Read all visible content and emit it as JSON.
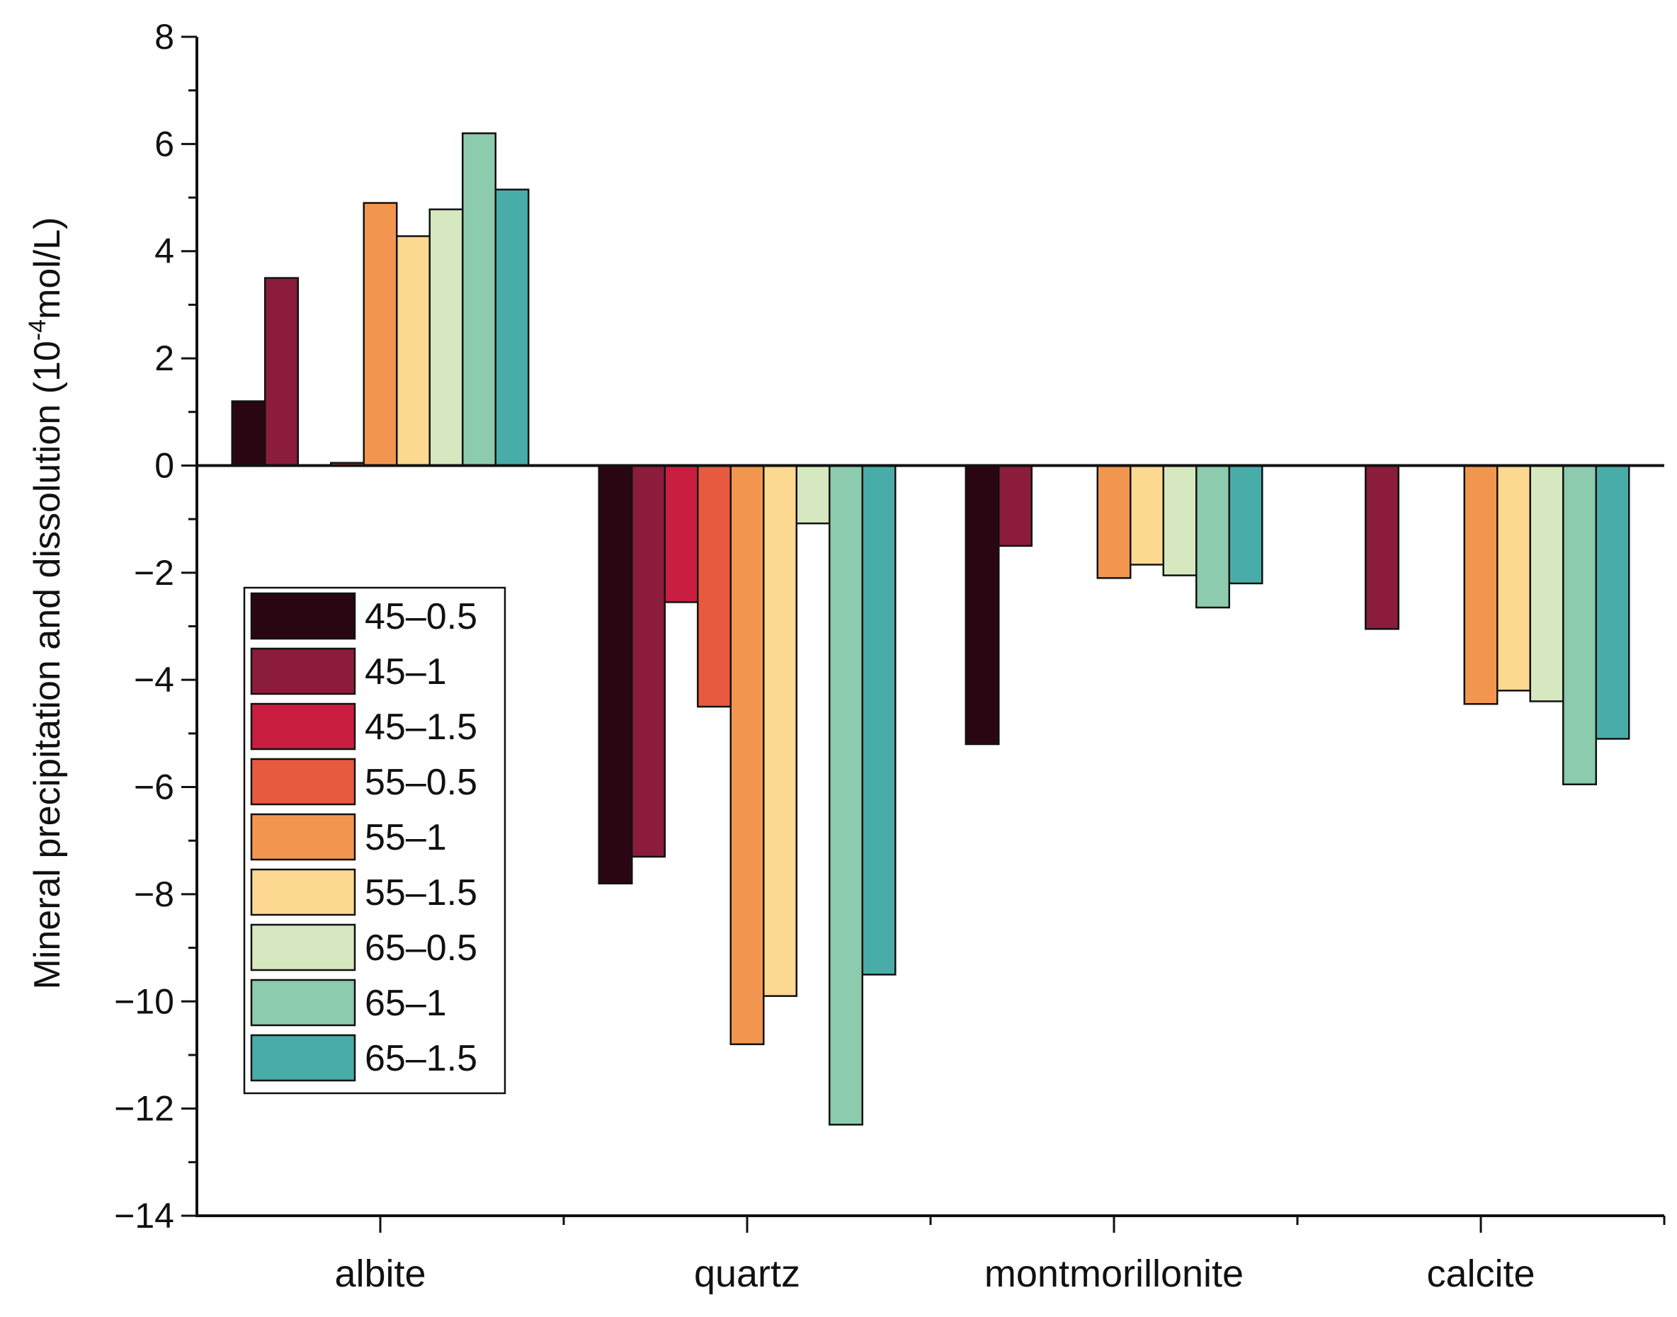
{
  "chart_data": {
    "type": "bar",
    "title": "",
    "xlabel": "",
    "ylabel_parts": {
      "prefix": "Mineral precipitation and dissolution (10",
      "superscript": "-4",
      "suffix": "mol/L)"
    },
    "ylim": [
      -14,
      8
    ],
    "yticks": [
      8,
      6,
      4,
      2,
      0,
      -2,
      -4,
      -6,
      -8,
      -10,
      -12,
      -14
    ],
    "ytick_labels": [
      "8",
      "6",
      "4",
      "2",
      "0",
      "−2",
      "−4",
      "−6",
      "−8",
      "−10",
      "−12",
      "−14"
    ],
    "categories": [
      "albite",
      "quartz",
      "montmorillonite",
      "calcite"
    ],
    "legend_position": "center-left",
    "series": [
      {
        "name": "45–0.5",
        "color": "#2a0612",
        "values": [
          1.2,
          -7.8,
          -5.2,
          0
        ]
      },
      {
        "name": "45–1",
        "color": "#8b1c3c",
        "values": [
          3.5,
          -7.3,
          -1.5,
          -3.05
        ]
      },
      {
        "name": "45–1.5",
        "color": "#c91e40",
        "values": [
          0,
          -2.55,
          0,
          0
        ]
      },
      {
        "name": "55–0.5",
        "color": "#e85a40",
        "values": [
          0.05,
          -4.5,
          0,
          0
        ]
      },
      {
        "name": "55–1",
        "color": "#f2964f",
        "values": [
          4.9,
          -10.8,
          -2.1,
          -4.45
        ]
      },
      {
        "name": "55–1.5",
        "color": "#fdd890",
        "values": [
          4.28,
          -9.9,
          -1.85,
          -4.2
        ]
      },
      {
        "name": "65–0.5",
        "color": "#d6e8bf",
        "values": [
          4.78,
          -1.08,
          -2.05,
          -4.4
        ]
      },
      {
        "name": "65–1",
        "color": "#8ccbad",
        "values": [
          6.2,
          -12.3,
          -2.65,
          -5.95
        ]
      },
      {
        "name": "65–1.5",
        "color": "#48ada9",
        "values": [
          5.15,
          -9.5,
          -2.2,
          -5.1
        ]
      }
    ]
  }
}
